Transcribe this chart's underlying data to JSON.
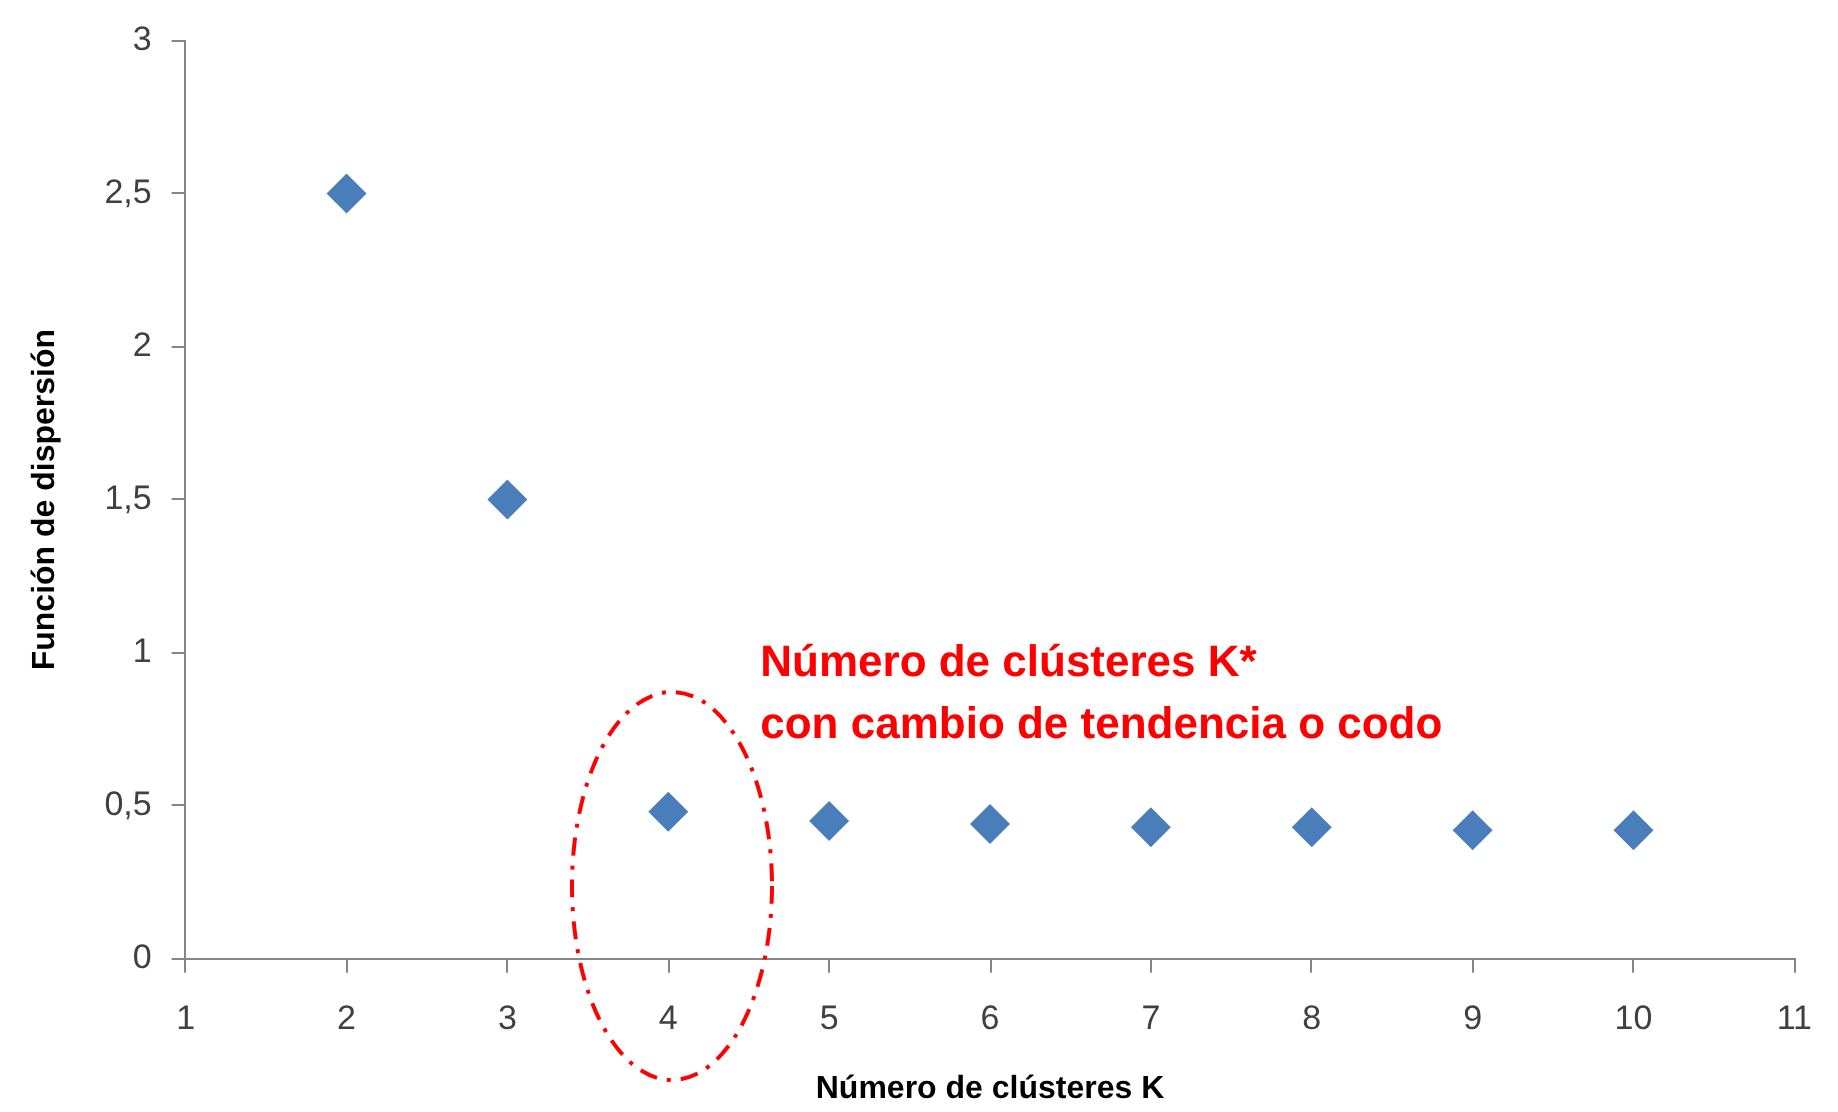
{
  "chart_data": {
    "type": "scatter",
    "xlabel": "Número de clústeres K",
    "ylabel": "Función de dispersión",
    "x": [
      2,
      3,
      4,
      5,
      6,
      7,
      8,
      9,
      10
    ],
    "values": [
      2.5,
      1.5,
      0.48,
      0.45,
      0.44,
      0.43,
      0.43,
      0.42,
      0.42
    ],
    "color": "#4a7ebb",
    "xlim": [
      1,
      11
    ],
    "ylim": [
      0,
      3
    ],
    "xticks": [
      1,
      2,
      3,
      4,
      5,
      6,
      7,
      8,
      9,
      10,
      11
    ],
    "yticks": [
      0,
      {
        "value": 0.5,
        "label": "0,5"
      },
      1,
      {
        "value": 1.5,
        "label": "1,5"
      },
      2,
      {
        "value": 2.5,
        "label": "2,5"
      },
      3
    ],
    "marker": "diamond",
    "grid": false,
    "legend": false,
    "annotations": [
      {
        "text": "Número de clústeres K*\ncon cambio de tendencia o codo",
        "x": 4,
        "y": 0.48
      }
    ]
  }
}
